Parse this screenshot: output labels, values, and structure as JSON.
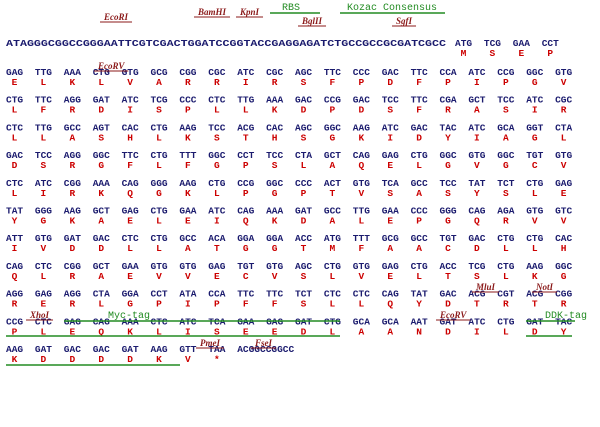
{
  "rows": [
    {
      "leader": "ATAGGGCGGCCGGGAATTCGTCGACTGGATCCGGTACCGAGGAGATCTGCCGCCGCGATCGCC",
      "codons": [
        "ATG",
        "TCG",
        "GAA",
        "CCT"
      ],
      "aa": [
        "M",
        "S",
        "E",
        "P"
      ]
    },
    {
      "codons": [
        "GAG",
        "TTG",
        "AAA",
        "CTG",
        "GTG",
        "GCG",
        "CGG",
        "CGC",
        "ATC",
        "CGC",
        "AGC",
        "TTC",
        "CCC",
        "GAC",
        "TTC",
        "CCA",
        "ATC",
        "CCG",
        "GGC",
        "GTG"
      ],
      "aa": [
        "E",
        "L",
        "K",
        "L",
        "V",
        "A",
        "R",
        "R",
        "I",
        "R",
        "S",
        "F",
        "P",
        "D",
        "F",
        "P",
        "I",
        "P",
        "G",
        "V"
      ]
    },
    {
      "codons": [
        "CTG",
        "TTC",
        "AGG",
        "GAT",
        "ATC",
        "TCG",
        "CCC",
        "CTC",
        "TTG",
        "AAA",
        "GAC",
        "CCG",
        "GAC",
        "TCC",
        "TTC",
        "CGA",
        "GCT",
        "TCC",
        "ATC",
        "CGC"
      ],
      "aa": [
        "L",
        "F",
        "R",
        "D",
        "I",
        "S",
        "P",
        "L",
        "L",
        "K",
        "D",
        "P",
        "D",
        "S",
        "F",
        "R",
        "A",
        "S",
        "I",
        "R"
      ]
    },
    {
      "codons": [
        "CTC",
        "TTG",
        "GCC",
        "AGT",
        "CAC",
        "CTG",
        "AAG",
        "TCC",
        "ACG",
        "CAC",
        "AGC",
        "GGC",
        "AAG",
        "ATC",
        "GAC",
        "TAC",
        "ATC",
        "GCA",
        "GGT",
        "CTA"
      ],
      "aa": [
        "L",
        "L",
        "A",
        "S",
        "H",
        "L",
        "K",
        "S",
        "T",
        "H",
        "S",
        "G",
        "K",
        "I",
        "D",
        "Y",
        "I",
        "A",
        "G",
        "L"
      ]
    },
    {
      "codons": [
        "GAC",
        "TCC",
        "AGG",
        "GGC",
        "TTC",
        "CTG",
        "TTT",
        "GGC",
        "CCT",
        "TCC",
        "CTA",
        "GCT",
        "CAG",
        "GAG",
        "CTG",
        "GGC",
        "GTG",
        "GGC",
        "TGT",
        "GTG"
      ],
      "aa": [
        "D",
        "S",
        "R",
        "G",
        "F",
        "L",
        "F",
        "G",
        "P",
        "S",
        "L",
        "A",
        "Q",
        "E",
        "L",
        "G",
        "V",
        "G",
        "C",
        "V"
      ]
    },
    {
      "codons": [
        "CTC",
        "ATC",
        "CGG",
        "AAA",
        "CAG",
        "GGG",
        "AAG",
        "CTG",
        "CCG",
        "GGC",
        "CCC",
        "ACT",
        "GTG",
        "TCA",
        "GCC",
        "TCC",
        "TAT",
        "TCT",
        "CTG",
        "GAG"
      ],
      "aa": [
        "L",
        "I",
        "R",
        "K",
        "Q",
        "G",
        "K",
        "L",
        "P",
        "G",
        "P",
        "T",
        "V",
        "S",
        "A",
        "S",
        "Y",
        "S",
        "L",
        "E"
      ]
    },
    {
      "codons": [
        "TAT",
        "GGG",
        "AAG",
        "GCT",
        "GAG",
        "CTG",
        "GAA",
        "ATC",
        "CAG",
        "AAA",
        "GAT",
        "GCC",
        "TTG",
        "GAA",
        "CCC",
        "GGG",
        "CAG",
        "AGA",
        "GTG",
        "GTC"
      ],
      "aa": [
        "Y",
        "G",
        "K",
        "A",
        "E",
        "L",
        "E",
        "I",
        "Q",
        "K",
        "D",
        "A",
        "L",
        "E",
        "P",
        "G",
        "Q",
        "R",
        "V",
        "V"
      ]
    },
    {
      "codons": [
        "ATT",
        "GTG",
        "GAT",
        "GAC",
        "CTC",
        "CTG",
        "GCC",
        "ACA",
        "GGA",
        "GGA",
        "ACC",
        "ATG",
        "TTT",
        "GCG",
        "GCC",
        "TGT",
        "GAC",
        "CTG",
        "CTG",
        "CAC"
      ],
      "aa": [
        "I",
        "V",
        "D",
        "D",
        "L",
        "L",
        "A",
        "T",
        "G",
        "G",
        "T",
        "M",
        "F",
        "A",
        "A",
        "C",
        "D",
        "L",
        "L",
        "H"
      ]
    },
    {
      "codons": [
        "CAG",
        "CTC",
        "CGG",
        "GCT",
        "GAA",
        "GTG",
        "GTG",
        "GAG",
        "TGT",
        "GTG",
        "AGC",
        "CTG",
        "GTG",
        "GAG",
        "CTG",
        "ACC",
        "TCG",
        "CTG",
        "AAG",
        "GGC"
      ],
      "aa": [
        "Q",
        "L",
        "R",
        "A",
        "E",
        "V",
        "V",
        "E",
        "C",
        "V",
        "S",
        "L",
        "V",
        "E",
        "L",
        "T",
        "S",
        "L",
        "K",
        "G"
      ]
    },
    {
      "codons": [
        "AGG",
        "GAG",
        "AGG",
        "CTA",
        "GGA",
        "CCT",
        "ATA",
        "CCA",
        "TTC",
        "TTC",
        "TCT",
        "CTC",
        "CTC",
        "CAG",
        "TAT",
        "GAC",
        "ACG",
        "CGT",
        "ACG",
        "CGG"
      ],
      "aa": [
        "R",
        "E",
        "R",
        "L",
        "G",
        "P",
        "I",
        "P",
        "F",
        "F",
        "S",
        "L",
        "L",
        "Q",
        "Y",
        "D",
        "T",
        "R",
        "T",
        "R"
      ]
    },
    {
      "codons": [
        "CCG",
        "CTC",
        "GAG",
        "CAG",
        "AAA",
        "CTC",
        "ATC",
        "TCA",
        "GAA",
        "GAG",
        "GAT",
        "CTG",
        "GCA",
        "GCA",
        "AAT",
        "GAT",
        "ATC",
        "CTG",
        "GAT",
        "TAC"
      ],
      "aa": [
        "P",
        "L",
        "E",
        "Q",
        "K",
        "L",
        "I",
        "S",
        "E",
        "E",
        "D",
        "L",
        "A",
        "A",
        "N",
        "D",
        "I",
        "L",
        "D",
        "Y"
      ]
    },
    {
      "codons": [
        "AAG",
        "GAT",
        "GAC",
        "GAC",
        "GAT",
        "AAG",
        "GTT",
        "TAA"
      ],
      "aa": [
        "K",
        "D",
        "D",
        "D",
        "D",
        "K",
        "V",
        "*"
      ],
      "tail": "ACGGCCGGCC"
    }
  ],
  "annotations": [
    "EcoRI",
    "BamHI",
    "KpnI",
    "RBS",
    "BglII",
    "Kozac Consensus",
    "SgfI",
    "EcoRV",
    "MluI",
    "NotI",
    "XhoI",
    "Myc-tag",
    "EcoRV",
    "DDK-tag",
    "PmeI",
    "FseI"
  ]
}
